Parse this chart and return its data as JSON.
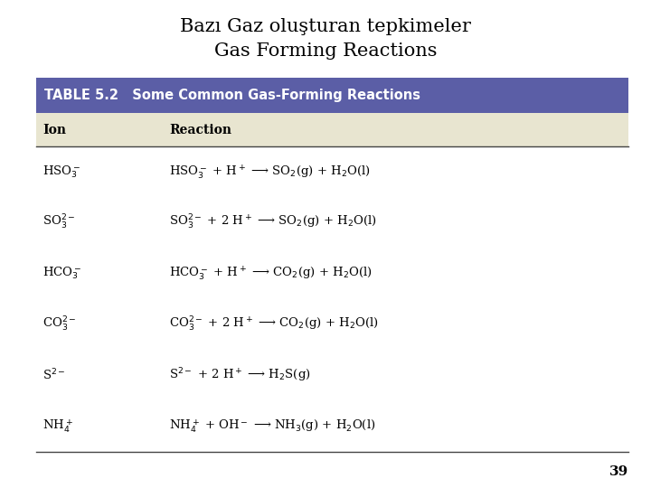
{
  "title_line1": "Bazı Gaz oluşturan tepkimeler",
  "title_line2": "Gas Forming Reactions",
  "table_header_bg": "#5b5ea6",
  "table_header_text_color": "#ffffff",
  "table_subheader_bg": "#e8e5d0",
  "table_body_bg": "#ffffff",
  "table_header_label": "TABLE 5.2   Some Common Gas-Forming Reactions",
  "col_ion_label": "Ion",
  "col_reaction_label": "Reaction",
  "ions": [
    "HSO$_3^-$",
    "SO$_3^{2-}$",
    "HCO$_3^-$",
    "CO$_3^{2-}$",
    "S$^{2-}$",
    "NH$_4^+$"
  ],
  "reactions": [
    "HSO$_3^-$ + H$^+$ ⟶ SO$_2$(g) + H$_2$O(l)",
    "SO$_3^{2-}$ + 2 H$^+$ ⟶ SO$_2$(g) + H$_2$O(l)",
    "HCO$_3^-$ + H$^+$ ⟶ CO$_2$(g) + H$_2$O(l)",
    "CO$_3^{2-}$ + 2 H$^+$ ⟶ CO$_2$(g) + H$_2$O(l)",
    "S$^{2-}$ + 2 H$^+$ ⟶ H$_2$S(g)",
    "NH$_4^+$ + OH$^-$ ⟶ NH$_3$(g) + H$_2$O(l)"
  ],
  "page_number": "39",
  "bg_color": "#ffffff",
  "title_fontsize": 15,
  "header_fontsize": 10.5,
  "subheader_fontsize": 10,
  "body_fontsize": 9.5,
  "page_fontsize": 11
}
